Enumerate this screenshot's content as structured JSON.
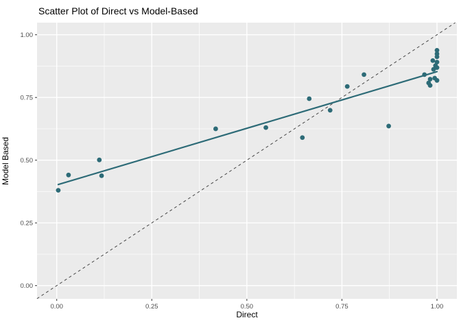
{
  "chart_data": {
    "type": "scatter",
    "title": "Scatter Plot of Direct vs Model-Based",
    "xlabel": "Direct",
    "ylabel": "Model Based",
    "xlim": [
      -0.052,
      1.052
    ],
    "ylim": [
      -0.053,
      1.048
    ],
    "grid": "major-and-minor",
    "legend_position": "none",
    "x_ticks": {
      "values": [
        0,
        0.25,
        0.5,
        0.75,
        1.0
      ],
      "labels": [
        "0.00",
        "0.25",
        "0.50",
        "0.75",
        "1.00"
      ]
    },
    "y_ticks": {
      "values": [
        0,
        0.25,
        0.5,
        0.75,
        1.0
      ],
      "labels": [
        "0.00",
        "0.25",
        "0.50",
        "0.75",
        "1.00"
      ]
    },
    "minor_tick_values": [
      0.125,
      0.375,
      0.625,
      0.875
    ],
    "points": [
      [
        0.004,
        0.38
      ],
      [
        0.031,
        0.441
      ],
      [
        0.112,
        0.501
      ],
      [
        0.118,
        0.438
      ],
      [
        0.418,
        0.625
      ],
      [
        0.55,
        0.63
      ],
      [
        0.646,
        0.59
      ],
      [
        0.664,
        0.745
      ],
      [
        0.719,
        0.699
      ],
      [
        0.764,
        0.794
      ],
      [
        0.808,
        0.841
      ],
      [
        0.873,
        0.636
      ],
      [
        0.967,
        0.841
      ],
      [
        0.982,
        0.823
      ],
      [
        0.994,
        0.827
      ],
      [
        1.0,
        0.818
      ],
      [
        0.978,
        0.808
      ],
      [
        0.982,
        0.798
      ],
      [
        1.0,
        0.938
      ],
      [
        1.0,
        0.924
      ],
      [
        1.0,
        0.912
      ],
      [
        0.989,
        0.897
      ],
      [
        1.0,
        0.891
      ],
      [
        0.996,
        0.877
      ],
      [
        1.0,
        0.869
      ],
      [
        0.991,
        0.862
      ]
    ],
    "regression_line": {
      "x1": 0.004,
      "y1": 0.403,
      "x2": 1.0,
      "y2": 0.853
    },
    "identity_line": {
      "slope": 1,
      "intercept": 0,
      "linetype": "dashed"
    },
    "colors": {
      "point": "#2d6b77",
      "smooth_line": "#2d6b77",
      "identity_line": "#454545",
      "panel_bg": "#ebebeb",
      "grid": "#ffffff",
      "tick_text": "#4d4d4d",
      "tick_mark": "#333333",
      "title_text": "#000000"
    }
  }
}
